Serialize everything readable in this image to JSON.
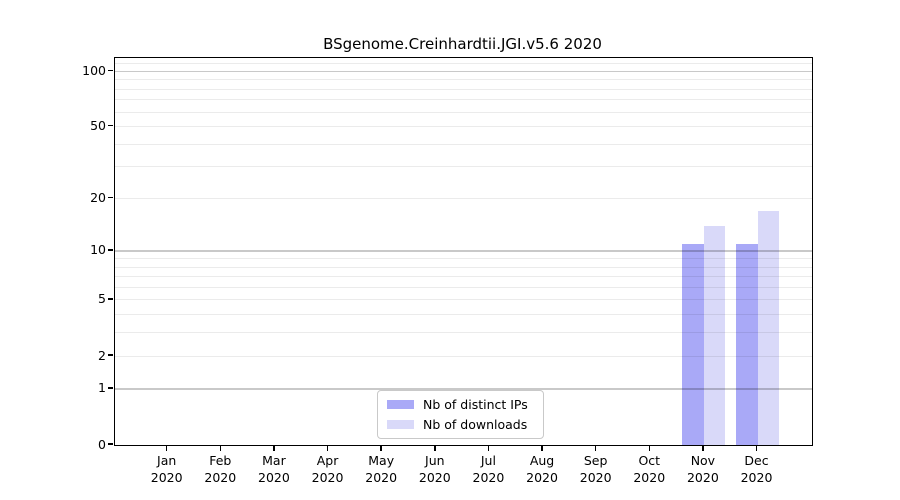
{
  "chart_data": {
    "type": "bar",
    "title": "BSgenome.Creinhardtii.JGI.v5.6 2020",
    "categories": [
      "Jan",
      "Feb",
      "Mar",
      "Apr",
      "May",
      "Jun",
      "Jul",
      "Aug",
      "Sep",
      "Oct",
      "Nov",
      "Dec"
    ],
    "year": "2020",
    "series": [
      {
        "name": "Nb of distinct IPs",
        "color": "#a9a9f7",
        "values": [
          0,
          0,
          0,
          0,
          0,
          0,
          0,
          0,
          0,
          0,
          11,
          11
        ]
      },
      {
        "name": "Nb of downloads",
        "color": "#d9d9f9",
        "values": [
          0,
          0,
          0,
          0,
          0,
          0,
          0,
          0,
          0,
          0,
          14,
          17
        ]
      }
    ],
    "xlabel": "",
    "ylabel": "",
    "yscale": "log1p",
    "ylim": [
      0,
      118
    ],
    "ytick_values": [
      0,
      1,
      2,
      5,
      10,
      20,
      50,
      100
    ],
    "grid": {
      "on": true,
      "major_values": [
        1,
        10,
        100
      ],
      "minor_values": [
        2,
        3,
        4,
        5,
        6,
        7,
        8,
        9,
        20,
        30,
        40,
        50,
        60,
        70,
        80,
        90,
        110
      ]
    },
    "legend": {
      "position": "bottom-center-inside"
    }
  }
}
